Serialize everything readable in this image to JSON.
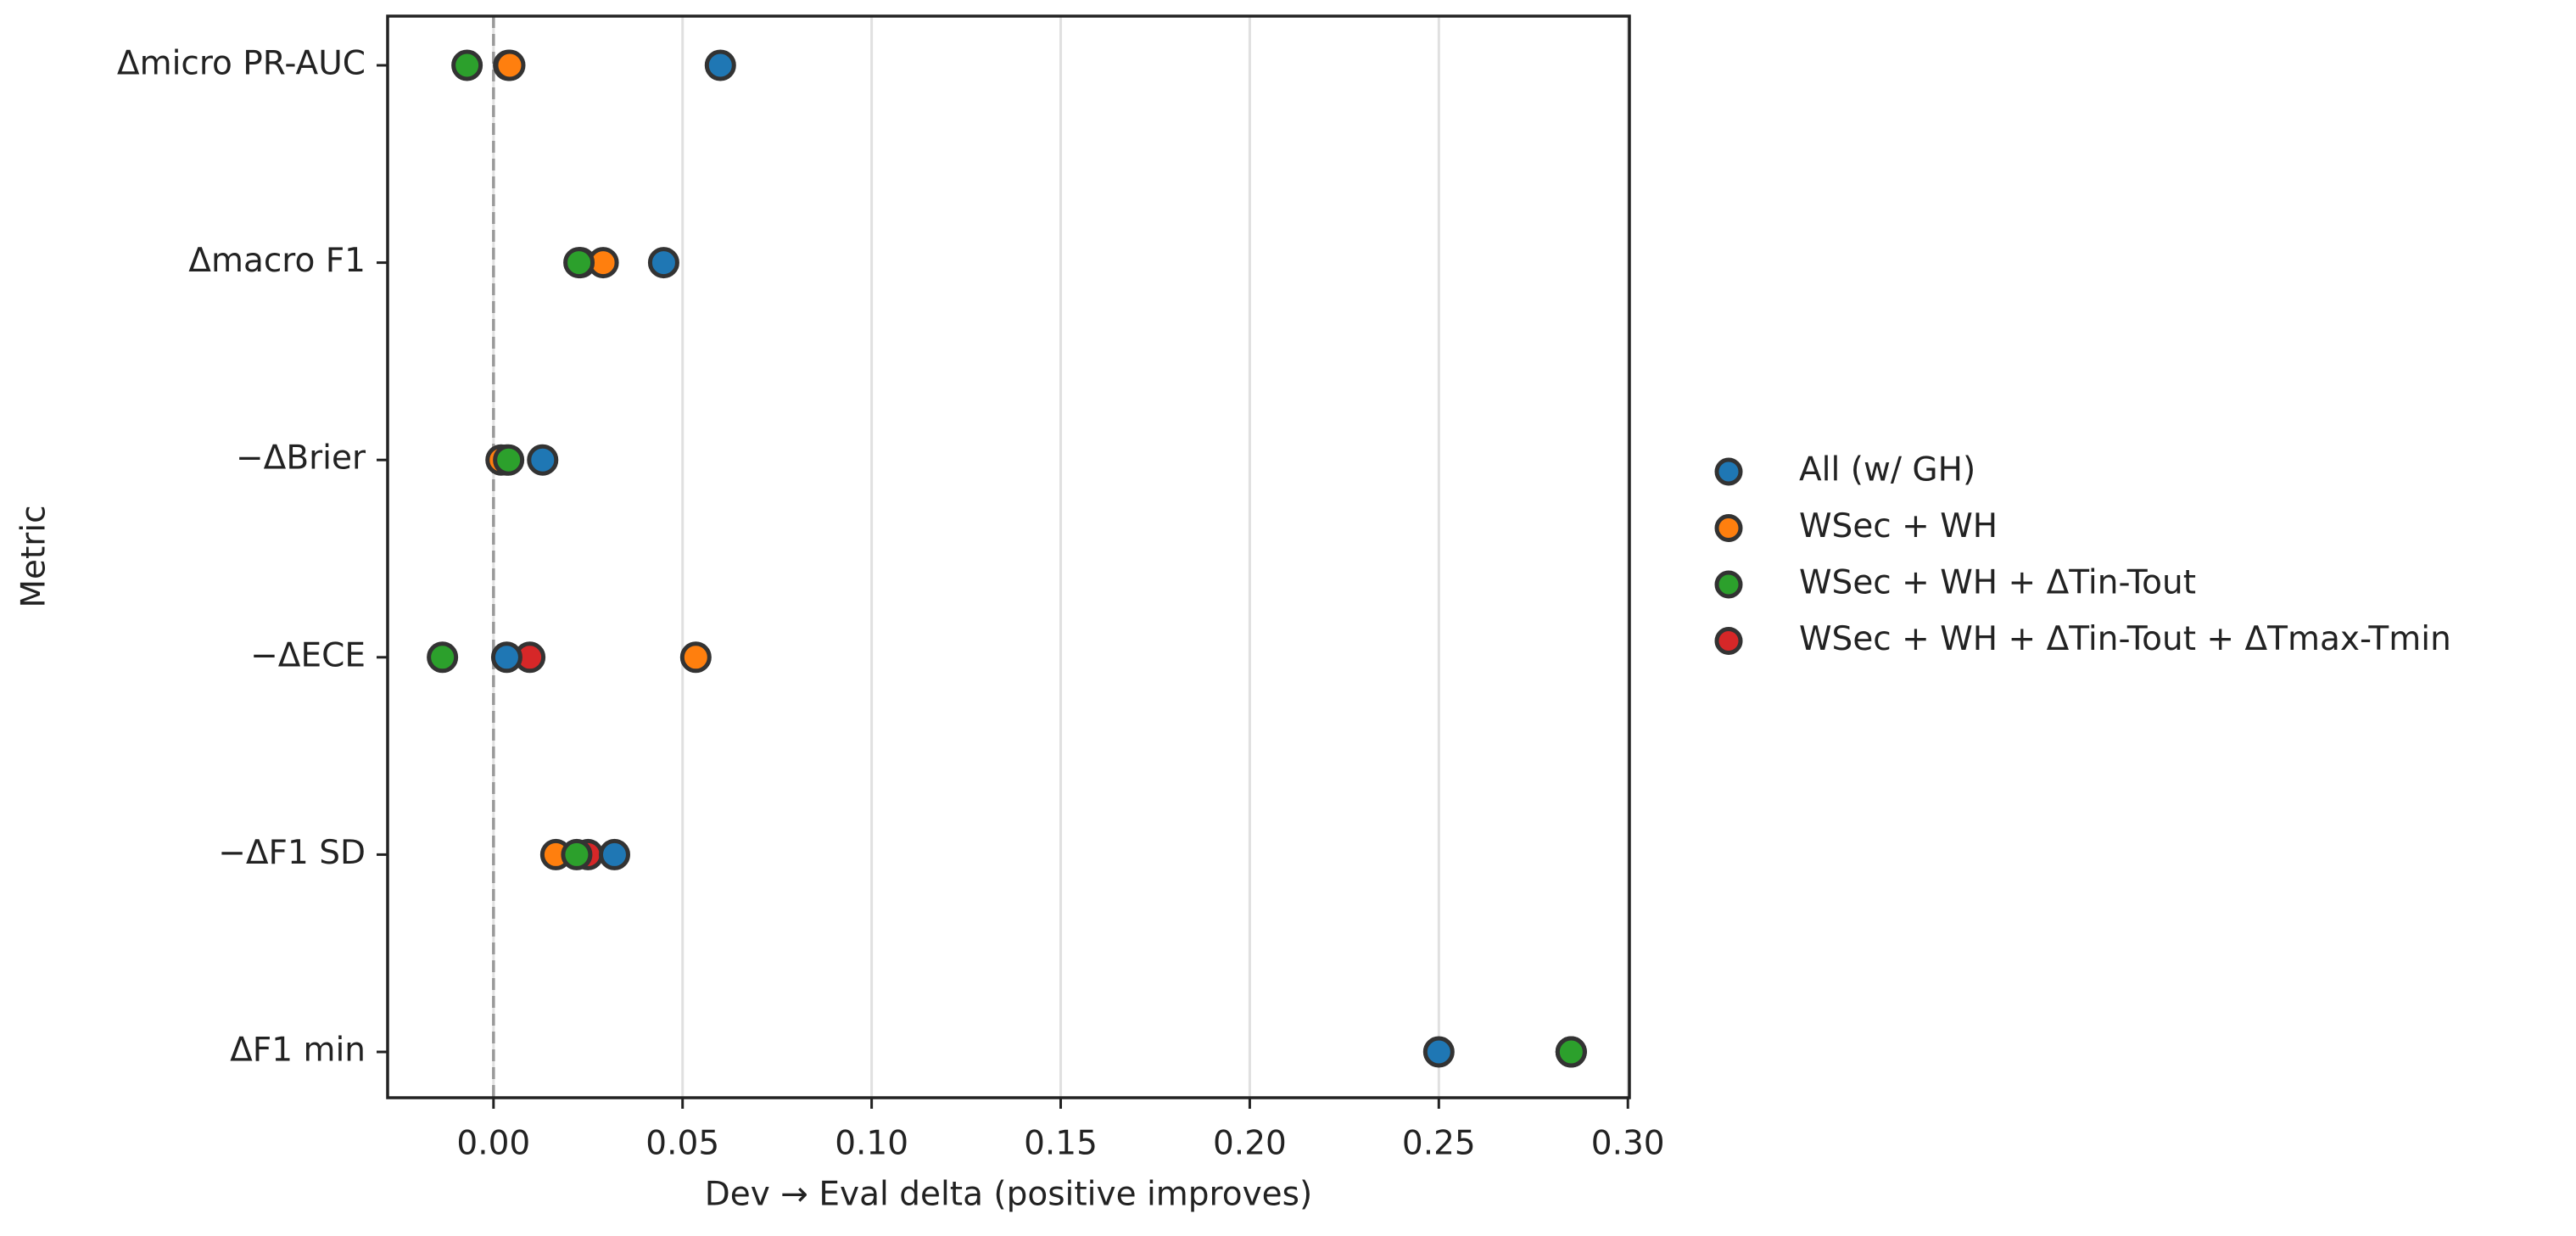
{
  "chart_data": {
    "type": "dot",
    "xlabel": "Dev → Eval delta (positive improves)",
    "ylabel": "Metric",
    "categories": [
      "Δmicro PR-AUC",
      "Δmacro F1",
      "−ΔBrier",
      "−ΔECE",
      "−ΔF1 SD",
      "ΔF1 min"
    ],
    "series": [
      {
        "name": "All (w/ GH)",
        "color": "#1f77b4",
        "values": [
          0.06,
          0.045,
          0.013,
          0.0035,
          0.032,
          0.25
        ]
      },
      {
        "name": "WSec + WH",
        "color": "#ff7f0e",
        "values": [
          0.0043,
          0.029,
          0.002,
          0.0535,
          0.0165,
          0.285
        ]
      },
      {
        "name": "WSec + WH + ΔTin-Tout",
        "color": "#2ca02c",
        "values": [
          -0.007,
          0.0226,
          0.004,
          -0.0135,
          0.022,
          0.285
        ]
      },
      {
        "name": "WSec + WH + ΔTin-Tout + ΔTmax-Tmin",
        "color": "#d62728",
        "values": [
          0.004,
          0.023,
          0.0035,
          0.0096,
          0.025,
          0.285
        ]
      }
    ],
    "xlim": [
      -0.028,
      0.3004
    ],
    "xticks": [
      {
        "value": 0,
        "label": "0.00"
      },
      {
        "value": 0.05,
        "label": "0.05"
      },
      {
        "value": 0.1,
        "label": "0.10"
      },
      {
        "value": 0.15,
        "label": "0.15"
      },
      {
        "value": 0.2,
        "label": "0.20"
      },
      {
        "value": 0.25,
        "label": "0.25"
      },
      {
        "value": 0.3,
        "label": "0.30"
      }
    ],
    "grid": "x",
    "vline": 0,
    "legend": "right"
  }
}
